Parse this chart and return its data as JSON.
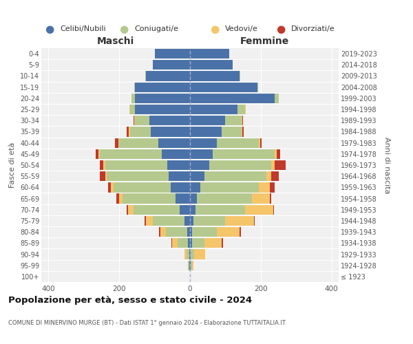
{
  "age_groups": [
    "100+",
    "95-99",
    "90-94",
    "85-89",
    "80-84",
    "75-79",
    "70-74",
    "65-69",
    "60-64",
    "55-59",
    "50-54",
    "45-49",
    "40-44",
    "35-39",
    "30-34",
    "25-29",
    "20-24",
    "15-19",
    "10-14",
    "5-9",
    "0-4"
  ],
  "birth_years": [
    "≤ 1923",
    "1924-1928",
    "1929-1933",
    "1934-1938",
    "1939-1943",
    "1944-1948",
    "1949-1953",
    "1954-1958",
    "1959-1963",
    "1964-1968",
    "1969-1973",
    "1974-1978",
    "1979-1983",
    "1984-1988",
    "1989-1993",
    "1994-1998",
    "1999-2003",
    "2004-2008",
    "2009-2013",
    "2014-2018",
    "2019-2023"
  ],
  "males": {
    "celibi": [
      0,
      2,
      2,
      5,
      8,
      15,
      30,
      40,
      55,
      60,
      65,
      80,
      90,
      110,
      115,
      155,
      155,
      155,
      125,
      105,
      100
    ],
    "coniugati": [
      0,
      3,
      8,
      30,
      60,
      90,
      130,
      150,
      160,
      175,
      175,
      175,
      110,
      60,
      40,
      15,
      10,
      3,
      2,
      0,
      0
    ],
    "vedovi": [
      0,
      0,
      5,
      15,
      15,
      20,
      15,
      10,
      8,
      5,
      5,
      3,
      3,
      3,
      2,
      2,
      0,
      0,
      0,
      0,
      0
    ],
    "divorziati": [
      0,
      0,
      0,
      2,
      5,
      3,
      3,
      8,
      8,
      15,
      10,
      8,
      8,
      5,
      2,
      0,
      0,
      0,
      0,
      0,
      0
    ]
  },
  "females": {
    "nubili": [
      0,
      2,
      2,
      5,
      5,
      10,
      15,
      20,
      30,
      40,
      55,
      65,
      75,
      90,
      100,
      135,
      240,
      190,
      140,
      120,
      110
    ],
    "coniugate": [
      0,
      3,
      10,
      35,
      70,
      90,
      140,
      155,
      165,
      175,
      175,
      175,
      120,
      55,
      45,
      20,
      10,
      2,
      2,
      0,
      0
    ],
    "vedove": [
      0,
      5,
      30,
      50,
      65,
      80,
      80,
      50,
      30,
      15,
      10,
      5,
      3,
      3,
      2,
      2,
      0,
      0,
      0,
      0,
      0
    ],
    "divorziate": [
      0,
      0,
      0,
      3,
      3,
      3,
      3,
      5,
      15,
      20,
      30,
      10,
      5,
      3,
      2,
      0,
      0,
      0,
      0,
      0,
      0
    ]
  },
  "colors": {
    "celibi": "#4a72a8",
    "coniugati": "#b5c98e",
    "vedovi": "#f5c56a",
    "divorziati": "#c0392b"
  },
  "title": "Popolazione per età, sesso e stato civile - 2024",
  "subtitle": "COMUNE DI MINERVINO MURGE (BT) - Dati ISTAT 1° gennaio 2024 - Elaborazione TUTTAITALIA.IT",
  "xlabel_left": "Maschi",
  "xlabel_right": "Femmine",
  "ylabel_left": "Fasce di età",
  "ylabel_right": "Anni di nascita",
  "xlim": 420,
  "legend_labels": [
    "Celibi/Nubili",
    "Coniugati/e",
    "Vedovi/e",
    "Divorziati/e"
  ],
  "background_color": "#ffffff",
  "grid_color": "#cccccc"
}
